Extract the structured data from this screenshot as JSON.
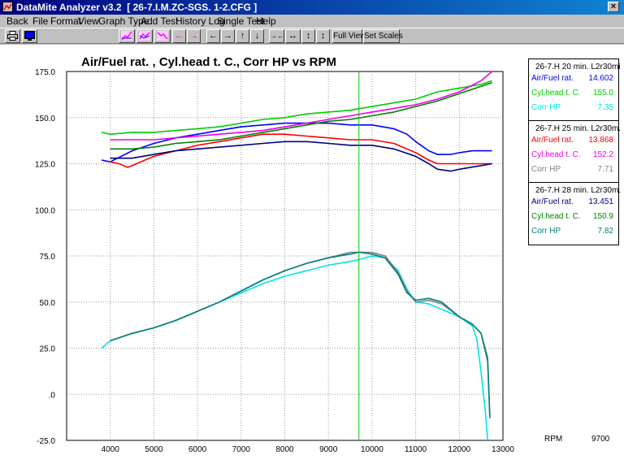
{
  "window": {
    "title": "DataMite Analyzer v3.2  [ 26-7.I.M.ZC-SGS. 1-2.CFG ]",
    "close_glyph": "×"
  },
  "menu": [
    "Back",
    "File",
    "Format",
    "View",
    "Graph Type",
    "Add Test",
    "History Log",
    "Single Test",
    "Help"
  ],
  "toolbar": {
    "icons": [
      "print-icon",
      "monitor-icon",
      "graph-up-icon",
      "graph-multi-icon",
      "graph-down-icon",
      "arrow-left-icon",
      "arrow-right-icon",
      "arrow-left-icon",
      "arrow-right-icon",
      "arrow-up-icon",
      "arrow-down-icon",
      "expand-horizontal-icon",
      "stretch-horizontal-icon",
      "compress-vertical-icon",
      "stretch-vertical-icon"
    ],
    "arrows": [
      "←",
      "→",
      "←",
      "→",
      "↑",
      "↓",
      "→←",
      "↔",
      "↕",
      "↕"
    ],
    "full_view": "Full View",
    "set_scales": "Set Scales"
  },
  "cursor": {
    "rpm_label": "RPM",
    "rpm_value": "9700",
    "x": 9700
  },
  "legends": [
    {
      "header": "26-7.H 20 min. L2r30mi",
      "items": [
        {
          "name": "Air/Fuel rat.",
          "value": "14.602",
          "color": "#0000ff"
        },
        {
          "name": "Cyl.head t. C.",
          "value": "155.0",
          "color": "#00cc00"
        },
        {
          "name": "Corr HP",
          "value": "7.35",
          "color": "#00e5e5"
        }
      ]
    },
    {
      "header": "26-7.H 25 min. L2r30m.",
      "items": [
        {
          "name": "Air/Fuel rat.",
          "value": "13.868",
          "color": "#ff0000"
        },
        {
          "name": "Cyl.head t. C.",
          "value": "152.2",
          "color": "#ee00ee"
        },
        {
          "name": "Corr HP",
          "value": "7.71",
          "color": "#808080"
        }
      ]
    },
    {
      "header": "26-7.H 28 min. L2r30m.",
      "items": [
        {
          "name": "Air/Fuel rat.",
          "value": "13.451",
          "color": "#000080"
        },
        {
          "name": "Cyl.head t. C.",
          "value": "150.9",
          "color": "#008000"
        },
        {
          "name": "Corr HP",
          "value": "7.82",
          "color": "#008080"
        }
      ]
    }
  ],
  "chart_data": {
    "type": "line",
    "title": "Air/Fuel rat. , Cyl.head t. C., Corr HP vs RPM",
    "xlabel": "",
    "ylabel": "",
    "xlim": [
      3000,
      13000
    ],
    "ylim": [
      -25,
      175
    ],
    "x_ticks": [
      4000,
      5000,
      6000,
      7000,
      8000,
      9000,
      10000,
      11000,
      12000,
      13000
    ],
    "y_ticks": [
      -25,
      0,
      25,
      50,
      75,
      100,
      125,
      150,
      175
    ],
    "x_tick_labels": [
      "4000",
      "5000",
      "6000",
      "7000",
      "8000",
      "9000",
      "10000",
      "11000",
      "12000",
      "13000"
    ],
    "y_tick_labels": [
      "-25.0",
      ".0",
      "25.0",
      "50.0",
      "75.0",
      "100.0",
      "125.0",
      "150.0",
      "175.0"
    ],
    "grid": true,
    "series": [
      {
        "name": "Air/Fuel rat.",
        "test": "26-7.H 20 min. L2r30mi",
        "color": "#0000ff",
        "x": [
          3800,
          4000,
          4500,
          5000,
          5500,
          6000,
          6500,
          7000,
          7500,
          8000,
          8500,
          9000,
          9500,
          10000,
          10500,
          10800,
          11000,
          11300,
          11500,
          11800,
          12000,
          12300,
          12750
        ],
        "y": [
          127,
          126,
          132,
          136,
          139,
          141,
          143,
          145,
          146,
          147,
          147,
          147,
          146,
          146,
          144,
          141,
          137,
          132,
          130,
          130,
          131,
          132,
          132
        ]
      },
      {
        "name": "Cyl.head t. C.",
        "test": "26-7.H 20 min. L2r30mi",
        "color": "#00cc00",
        "x": [
          3800,
          4000,
          4500,
          5000,
          5500,
          6000,
          6500,
          7000,
          7500,
          8000,
          8500,
          9000,
          9500,
          10000,
          10500,
          11000,
          11500,
          12000,
          12500,
          12750
        ],
        "y": [
          142,
          141,
          142,
          142,
          143,
          144,
          145,
          147,
          149,
          150,
          152,
          153,
          154,
          156,
          158,
          160,
          164,
          166,
          168,
          170
        ]
      },
      {
        "name": "Corr HP",
        "test": "26-7.H 20 min. L2r30mi",
        "color": "#00e5e5",
        "x": [
          3800,
          4000,
          4500,
          5000,
          5500,
          6000,
          6500,
          7000,
          7500,
          8000,
          8500,
          9000,
          9500,
          9700,
          10000,
          10300,
          10600,
          10800,
          11000,
          11300,
          11600,
          12000,
          12300,
          12400,
          12500,
          12600,
          12650
        ],
        "y": [
          25,
          29,
          33,
          36,
          40,
          45,
          50,
          55,
          60,
          64,
          67,
          70,
          72,
          73,
          75,
          74,
          67,
          57,
          50,
          49,
          46,
          42,
          37,
          30,
          12,
          -10,
          -25
        ]
      },
      {
        "name": "Air/Fuel rat.",
        "test": "26-7.H 25 min. L2r30m.",
        "color": "#ff0000",
        "x": [
          4000,
          4200,
          4400,
          4500,
          5000,
          5500,
          6000,
          6500,
          7000,
          7500,
          8000,
          8500,
          9000,
          9500,
          10000,
          10500,
          11000,
          11300,
          11500,
          12000,
          12500,
          12750
        ],
        "y": [
          126,
          125,
          123,
          124,
          129,
          132,
          135,
          137,
          139,
          141,
          141,
          140,
          139,
          138,
          138,
          136,
          131,
          127,
          125,
          125,
          125,
          125
        ]
      },
      {
        "name": "Cyl.head t. C.",
        "test": "26-7.H 25 min. L2r30m.",
        "color": "#ee00ee",
        "x": [
          4000,
          4500,
          5000,
          5500,
          6000,
          6500,
          7000,
          7500,
          8000,
          8500,
          9000,
          9500,
          10000,
          10500,
          11000,
          11500,
          12000,
          12500,
          12750
        ],
        "y": [
          138,
          138,
          138,
          139,
          140,
          141,
          142,
          143,
          145,
          147,
          149,
          151,
          153,
          155,
          157,
          160,
          164,
          170,
          175
        ]
      },
      {
        "name": "Corr HP",
        "test": "26-7.H 25 min. L2r30m.",
        "color": "#808080",
        "x": [
          4000,
          4500,
          5000,
          5500,
          6000,
          6500,
          7000,
          7500,
          8000,
          8500,
          9000,
          9500,
          10000,
          10300,
          10600,
          10800,
          11000,
          11300,
          11600,
          12000,
          12300,
          12500,
          12650,
          12700
        ],
        "y": [
          29,
          33,
          36,
          40,
          45,
          50,
          56,
          62,
          67,
          71,
          74,
          77,
          77,
          75,
          66,
          56,
          50,
          51,
          49,
          42,
          38,
          33,
          20,
          -12
        ]
      },
      {
        "name": "Air/Fuel rat.",
        "test": "26-7.H 28 min. L2r30m.",
        "color": "#000080",
        "x": [
          4000,
          4500,
          5000,
          5500,
          6000,
          6500,
          7000,
          7500,
          8000,
          8500,
          9000,
          9500,
          10000,
          10500,
          11000,
          11300,
          11500,
          11800,
          12000,
          12500,
          12750
        ],
        "y": [
          128,
          128,
          130,
          132,
          133,
          134,
          135,
          136,
          137,
          137,
          136,
          135,
          135,
          133,
          129,
          125,
          122,
          121,
          122,
          124,
          125
        ]
      },
      {
        "name": "Cyl.head t. C.",
        "test": "26-7.H 28 min. L2r30m.",
        "color": "#008000",
        "x": [
          4000,
          4500,
          5000,
          5500,
          6000,
          6500,
          7000,
          7500,
          8000,
          8500,
          9000,
          9500,
          10000,
          10500,
          11000,
          11500,
          12000,
          12500,
          12750
        ],
        "y": [
          133,
          133,
          134,
          136,
          137,
          138,
          140,
          142,
          144,
          146,
          148,
          149,
          151,
          153,
          156,
          159,
          163,
          167,
          169
        ]
      },
      {
        "name": "Corr HP",
        "test": "26-7.H 28 min. L2r30m.",
        "color": "#008080",
        "x": [
          4000,
          4500,
          5000,
          5500,
          6000,
          6500,
          7000,
          7500,
          8000,
          8500,
          9000,
          9500,
          9700,
          10000,
          10300,
          10600,
          10800,
          11000,
          11300,
          11600,
          12000,
          12300,
          12500,
          12650,
          12700
        ],
        "y": [
          29,
          33,
          36,
          40,
          45,
          50,
          56,
          62,
          67,
          71,
          74,
          76,
          77,
          76,
          74,
          65,
          55,
          51,
          52,
          50,
          42,
          38,
          33,
          18,
          -13
        ]
      }
    ]
  }
}
